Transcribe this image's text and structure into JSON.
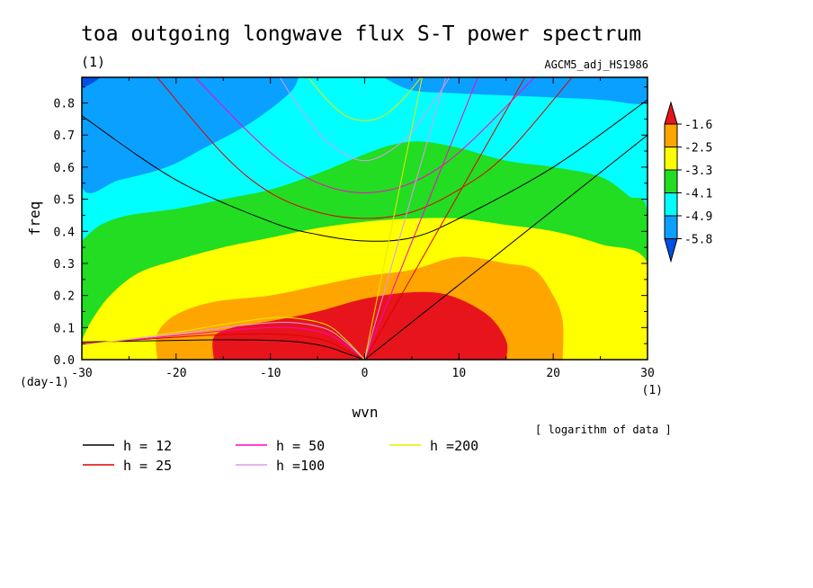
{
  "chart_data": {
    "type": "heatmap",
    "title": "toa outgoing longwave flux S-T power spectrum",
    "title_units": "(1)",
    "model_label": "AGCM5_adj_HS1986",
    "xlabel": "wvn",
    "xlabel_units": "(1)",
    "ylabel": "freq",
    "ylabel_units": "(day-1)",
    "xlim": [
      -30,
      30
    ],
    "ylim": [
      0,
      0.88
    ],
    "xticks": [
      -30,
      -20,
      -10,
      0,
      10,
      20,
      30
    ],
    "yticks": [
      0.0,
      0.1,
      0.2,
      0.3,
      0.4,
      0.5,
      0.6,
      0.7,
      0.8
    ],
    "xtick_labels": [
      "-30",
      "-20",
      "-10",
      "0",
      "10",
      "20",
      "30"
    ],
    "ytick_labels": [
      "0.0",
      "0.1",
      "0.2",
      "0.3",
      "0.4",
      "0.5",
      "0.6",
      "0.7",
      "0.8"
    ],
    "note": "[ logarithm of data ]",
    "colorbar": {
      "levels": [
        "-1.6",
        "-2.5",
        "-3.3",
        "-4.1",
        "-4.9",
        "-5.8"
      ],
      "colors": [
        "#e8141b",
        "#ffa500",
        "#ffff00",
        "#22dd22",
        "#00ffff",
        "#0aa0ff",
        "#0050e6"
      ]
    },
    "fill_regions": [
      {
        "name": "level-6",
        "color": "#0aa0ff",
        "boundary": [
          [
            -30,
            0.88
          ],
          [
            -30,
            0.54
          ],
          [
            -26,
            0.56
          ],
          [
            -21,
            0.6
          ],
          [
            -17,
            0.66
          ],
          [
            -12,
            0.74
          ],
          [
            -8,
            0.83
          ],
          [
            -7,
            0.88
          ]
        ]
      },
      {
        "name": "level-6",
        "color": "#0aa0ff",
        "boundary": [
          [
            2,
            0.88
          ],
          [
            5,
            0.84
          ],
          [
            10,
            0.83
          ],
          [
            18,
            0.82
          ],
          [
            25,
            0.81
          ],
          [
            30,
            0.8
          ],
          [
            30,
            0.88
          ]
        ]
      },
      {
        "name": "level-7",
        "color": "#0050e6",
        "boundary": [
          [
            -30,
            0.88
          ],
          [
            -30,
            0.85
          ],
          [
            -29,
            0.86
          ],
          [
            -28,
            0.88
          ]
        ]
      },
      {
        "name": "level-4",
        "color": "#22dd22",
        "boundary": [
          [
            -30,
            0.37
          ],
          [
            -28,
            0.42
          ],
          [
            -25,
            0.45
          ],
          [
            -20,
            0.47
          ],
          [
            -15,
            0.5
          ],
          [
            -10,
            0.53
          ],
          [
            -5,
            0.58
          ],
          [
            0,
            0.64
          ],
          [
            3,
            0.67
          ],
          [
            6,
            0.68
          ],
          [
            10,
            0.66
          ],
          [
            15,
            0.62
          ],
          [
            20,
            0.6
          ],
          [
            25,
            0.57
          ],
          [
            28,
            0.51
          ],
          [
            30,
            0.45
          ],
          [
            30,
            0
          ],
          [
            -30,
            0
          ]
        ]
      },
      {
        "name": "level-3",
        "color": "#ffff00",
        "boundary": [
          [
            -30,
            0.06
          ],
          [
            -29,
            0.12
          ],
          [
            -27,
            0.2
          ],
          [
            -24,
            0.27
          ],
          [
            -20,
            0.31
          ],
          [
            -15,
            0.35
          ],
          [
            -10,
            0.38
          ],
          [
            -5,
            0.41
          ],
          [
            0,
            0.43
          ],
          [
            5,
            0.44
          ],
          [
            10,
            0.44
          ],
          [
            15,
            0.42
          ],
          [
            20,
            0.4
          ],
          [
            25,
            0.36
          ],
          [
            30,
            0.3
          ],
          [
            30,
            0
          ],
          [
            -30,
            0
          ]
        ]
      },
      {
        "name": "level-2",
        "color": "#ffa500",
        "boundary": [
          [
            -22,
            0
          ],
          [
            -22,
            0.08
          ],
          [
            -20,
            0.14
          ],
          [
            -16,
            0.18
          ],
          [
            -10,
            0.2
          ],
          [
            -5,
            0.23
          ],
          [
            0,
            0.26
          ],
          [
            5,
            0.28
          ],
          [
            10,
            0.32
          ],
          [
            15,
            0.3
          ],
          [
            18,
            0.28
          ],
          [
            20,
            0.2
          ],
          [
            21,
            0.12
          ],
          [
            21,
            0
          ]
        ]
      },
      {
        "name": "level-1",
        "color": "#e8141b",
        "boundary": [
          [
            -16,
            0
          ],
          [
            -16,
            0.07
          ],
          [
            -14,
            0.1
          ],
          [
            -10,
            0.12
          ],
          [
            -5,
            0.15
          ],
          [
            0,
            0.19
          ],
          [
            5,
            0.21
          ],
          [
            9,
            0.2
          ],
          [
            13,
            0.14
          ],
          [
            15,
            0.06
          ],
          [
            15,
            0
          ]
        ]
      }
    ],
    "dispersion_legend": [
      {
        "label": "h = 12",
        "color": "#000000"
      },
      {
        "label": "h = 25",
        "color": "#e00000"
      },
      {
        "label": "h = 50",
        "color": "#ff00cc"
      },
      {
        "label": "h =100",
        "color": "#dd99ee"
      },
      {
        "label": "h =200",
        "color": "#e8e800"
      }
    ],
    "series": [
      {
        "name": "h = 12",
        "color": "#000000",
        "kelvin": [
          [
            0,
            0
          ],
          [
            30,
            0.7
          ]
        ],
        "ig": [
          [
            -30,
            0.76
          ],
          [
            -20,
            0.56
          ],
          [
            -10,
            0.43
          ],
          [
            -5,
            0.39
          ],
          [
            0,
            0.37
          ],
          [
            5,
            0.38
          ],
          [
            10,
            0.44
          ],
          [
            20,
            0.6
          ],
          [
            30,
            0.81
          ]
        ],
        "rossby": [
          [
            -30,
            0.055
          ],
          [
            -20,
            0.06
          ],
          [
            -15,
            0.062
          ],
          [
            -10,
            0.06
          ],
          [
            -7,
            0.055
          ],
          [
            -4,
            0.04
          ],
          [
            -2,
            0.02
          ],
          [
            0,
            0
          ]
        ]
      },
      {
        "name": "h = 25",
        "color": "#e00000",
        "kelvin": [
          [
            0,
            0
          ],
          [
            17,
            0.88
          ]
        ],
        "ig": [
          [
            -22,
            0.88
          ],
          [
            -15,
            0.64
          ],
          [
            -10,
            0.52
          ],
          [
            -5,
            0.46
          ],
          [
            0,
            0.44
          ],
          [
            5,
            0.46
          ],
          [
            10,
            0.53
          ],
          [
            15,
            0.64
          ],
          [
            22,
            0.88
          ]
        ],
        "rossby": [
          [
            -30,
            0.05
          ],
          [
            -20,
            0.07
          ],
          [
            -15,
            0.078
          ],
          [
            -10,
            0.08
          ],
          [
            -7,
            0.075
          ],
          [
            -4,
            0.058
          ],
          [
            -2,
            0.03
          ],
          [
            0,
            0
          ]
        ]
      },
      {
        "name": "h = 50",
        "color": "#ff00cc",
        "kelvin": [
          [
            0,
            0
          ],
          [
            12,
            0.88
          ]
        ],
        "ig": [
          [
            -18,
            0.88
          ],
          [
            -12,
            0.7
          ],
          [
            -8,
            0.6
          ],
          [
            -4,
            0.54
          ],
          [
            0,
            0.52
          ],
          [
            4,
            0.54
          ],
          [
            8,
            0.6
          ],
          [
            12,
            0.7
          ],
          [
            18,
            0.88
          ]
        ],
        "rossby": [
          [
            -30,
            0.048
          ],
          [
            -20,
            0.075
          ],
          [
            -15,
            0.09
          ],
          [
            -10,
            0.1
          ],
          [
            -7,
            0.098
          ],
          [
            -4,
            0.08
          ],
          [
            -2,
            0.045
          ],
          [
            0,
            0
          ]
        ]
      },
      {
        "name": "h =100",
        "color": "#dd99ee",
        "kelvin": [
          [
            0,
            0
          ],
          [
            8.6,
            0.88
          ]
        ],
        "ig": [
          [
            -9,
            0.88
          ],
          [
            -7,
            0.79
          ],
          [
            -4,
            0.68
          ],
          [
            0,
            0.62
          ],
          [
            4,
            0.68
          ],
          [
            7,
            0.79
          ],
          [
            9,
            0.88
          ]
        ],
        "rossby": [
          [
            -30,
            0.046
          ],
          [
            -20,
            0.08
          ],
          [
            -15,
            0.1
          ],
          [
            -10,
            0.115
          ],
          [
            -7,
            0.114
          ],
          [
            -4,
            0.095
          ],
          [
            -2,
            0.055
          ],
          [
            0,
            0
          ]
        ]
      },
      {
        "name": "h =200",
        "color": "#e8e800",
        "kelvin": [
          [
            0,
            0
          ],
          [
            6.1,
            0.88
          ]
        ],
        "ig": [
          [
            -6,
            0.88
          ],
          [
            -4,
            0.81
          ],
          [
            -2,
            0.76
          ],
          [
            0,
            0.745
          ],
          [
            2,
            0.76
          ],
          [
            4,
            0.81
          ],
          [
            6,
            0.88
          ]
        ],
        "rossby": [
          [
            -30,
            0.045
          ],
          [
            -20,
            0.085
          ],
          [
            -15,
            0.11
          ],
          [
            -10,
            0.13
          ],
          [
            -7,
            0.128
          ],
          [
            -4,
            0.108
          ],
          [
            -2,
            0.062
          ],
          [
            0,
            0
          ]
        ]
      }
    ]
  }
}
